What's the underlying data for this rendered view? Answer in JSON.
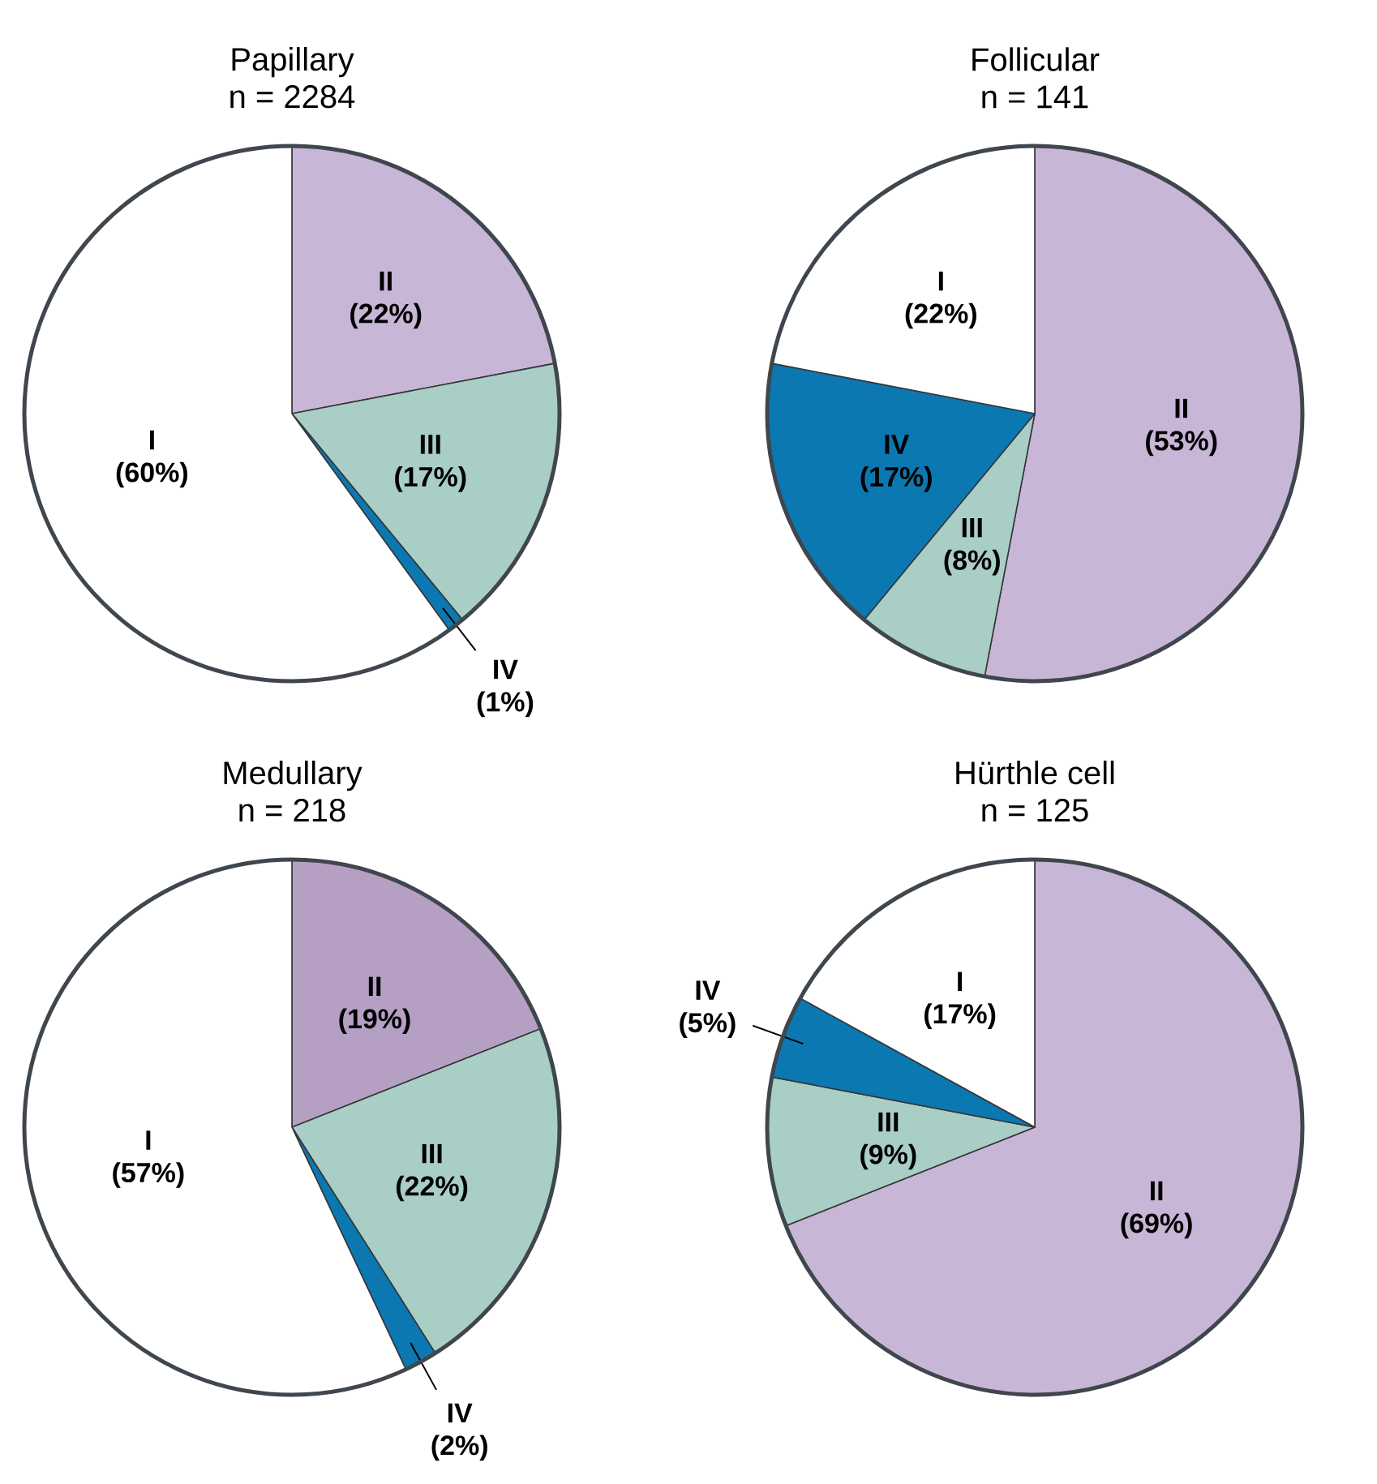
{
  "chart_data": [
    {
      "type": "pie",
      "title": "Papillary",
      "subtitle": "n = 2284",
      "categories": [
        "II",
        "III",
        "IV",
        "I"
      ],
      "values": [
        22,
        17,
        1,
        60
      ],
      "value_labels": [
        "(22%)",
        "(17%)",
        "(1%)",
        "(60%)"
      ],
      "colors": [
        "#c8b6d6",
        "#a9cec5",
        "#0b78b1",
        "#ffffff"
      ]
    },
    {
      "type": "pie",
      "title": "Follicular",
      "subtitle": "n = 141",
      "categories": [
        "II",
        "III",
        "IV",
        "I"
      ],
      "values": [
        53,
        8,
        17,
        22
      ],
      "value_labels": [
        "(53%)",
        "(8%)",
        "(17%)",
        "(22%)"
      ],
      "colors": [
        "#c8b6d6",
        "#a9cec5",
        "#0b78b1",
        "#ffffff"
      ]
    },
    {
      "type": "pie",
      "title": "Medullary",
      "subtitle": "n = 218",
      "categories": [
        "II",
        "III",
        "IV",
        "I"
      ],
      "values": [
        19,
        22,
        2,
        57
      ],
      "value_labels": [
        "(19%)",
        "(22%)",
        "(2%)",
        "(57%)"
      ],
      "colors": [
        "#b5a0c4",
        "#a9cec5",
        "#0b78b1",
        "#ffffff"
      ]
    },
    {
      "type": "pie",
      "title": "Hürthle cell",
      "subtitle": "n = 125",
      "categories": [
        "II",
        "III",
        "IV",
        "I"
      ],
      "values": [
        69,
        9,
        5,
        17
      ],
      "value_labels": [
        "(69%)",
        "(9%)",
        "(5%)",
        "(17%)"
      ],
      "colors": [
        "#c8b6d6",
        "#a9cec5",
        "#0b78b1",
        "#ffffff"
      ]
    }
  ]
}
